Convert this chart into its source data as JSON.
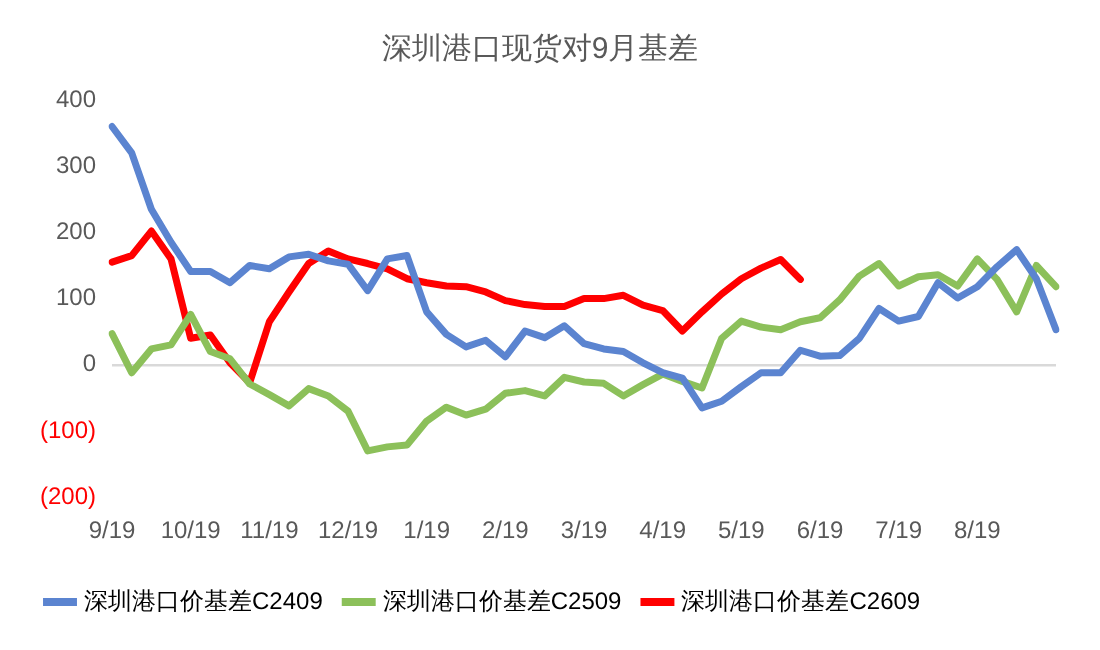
{
  "chart_data": {
    "type": "line",
    "title": "深圳港口现货对9月基差",
    "categories": [
      "9/19",
      null,
      null,
      null,
      "10/19",
      null,
      null,
      null,
      "11/19",
      null,
      null,
      null,
      "12/19",
      null,
      null,
      null,
      "1/19",
      null,
      null,
      null,
      "2/19",
      null,
      null,
      null,
      "3/19",
      null,
      null,
      null,
      "4/19",
      null,
      null,
      null,
      "5/19",
      null,
      null,
      null,
      "6/19",
      null,
      null,
      null,
      "7/19",
      null,
      null,
      null,
      "8/19",
      null,
      null,
      null,
      null
    ],
    "ylim": [
      -200,
      400
    ],
    "yticks": [
      {
        "value": -200,
        "label": "(200)"
      },
      {
        "value": -100,
        "label": "(100)"
      },
      0,
      100,
      200,
      300,
      400
    ],
    "legend": "bottom",
    "marker": "none",
    "line_style": "solid",
    "series": [
      {
        "name": "深圳港口价基差C2409",
        "color": "#5b84d0",
        "values": [
          360,
          320,
          235,
          185,
          141,
          141,
          124,
          150,
          145,
          163,
          167,
          157,
          152,
          112,
          160,
          165,
          80,
          46,
          27,
          37,
          12,
          51,
          41,
          59,
          32,
          24,
          20,
          3,
          -12,
          -20,
          -65,
          -55,
          -33,
          -12,
          -12,
          22,
          13,
          14,
          40,
          85,
          66,
          73,
          124,
          101,
          118,
          148,
          174,
          130,
          53
        ]
      },
      {
        "name": "深圳港口价基差C2509",
        "color": "#8cc05a",
        "values": [
          47,
          -12,
          24,
          30,
          76,
          20,
          9,
          -29,
          -45,
          -62,
          -36,
          -47,
          -70,
          -130,
          -124,
          -121,
          -85,
          -64,
          -76,
          -67,
          -43,
          -39,
          -47,
          -19,
          -26,
          -28,
          -47,
          -30,
          -14,
          -25,
          -35,
          40,
          66,
          57,
          53,
          65,
          71,
          98,
          134,
          153,
          119,
          133,
          136,
          119,
          160,
          129,
          80,
          150,
          118
        ]
      },
      {
        "name": "深圳港口价基差C2609",
        "color": "#ff0000",
        "values": [
          155,
          165,
          202,
          160,
          40,
          45,
          3,
          -27,
          65,
          110,
          153,
          172,
          160,
          153,
          145,
          130,
          124,
          119,
          118,
          110,
          97,
          91,
          88,
          88,
          100,
          100,
          105,
          90,
          82,
          51,
          80,
          107,
          130,
          146,
          159,
          129,
          null,
          null,
          null,
          null,
          null,
          null,
          null,
          null,
          null,
          null,
          null,
          null,
          null
        ]
      }
    ]
  }
}
